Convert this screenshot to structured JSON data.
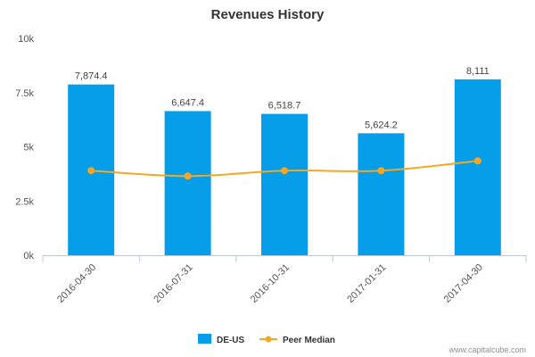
{
  "chart_data": {
    "type": "bar",
    "title": "Revenues History",
    "categories": [
      "2016-04-30",
      "2016-07-31",
      "2016-10-31",
      "2017-01-31",
      "2017-04-30"
    ],
    "series": [
      {
        "name": "DE-US",
        "type": "bar",
        "color": "#069ee8",
        "values": [
          7874.4,
          6647.4,
          6518.7,
          5624.2,
          8111
        ],
        "data_labels": [
          "7,874.4",
          "6,647.4",
          "6,518.7",
          "5,624.2",
          "8,111"
        ]
      },
      {
        "name": "Peer Median",
        "type": "line",
        "color": "#f5a623",
        "values": [
          3900,
          3650,
          3900,
          3900,
          4350
        ]
      }
    ],
    "ylim": [
      0,
      10000
    ],
    "yticks": [
      0,
      2500,
      5000,
      7500,
      10000
    ],
    "ytick_labels": [
      "0k",
      "2.5k",
      "5k",
      "7.5k",
      "10k"
    ],
    "xlabel": "",
    "ylabel": "",
    "grid": false,
    "legend_position": "bottom-center"
  },
  "credit": "www.capitalcube.com"
}
